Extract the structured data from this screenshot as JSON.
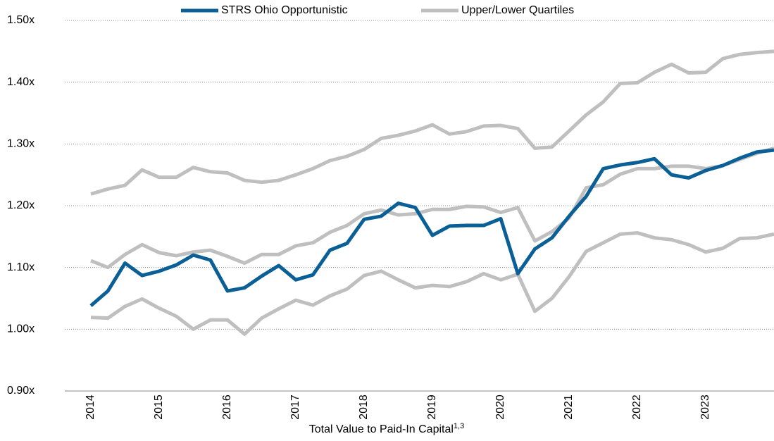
{
  "chart_data": {
    "type": "line",
    "x_label": "Total Value to Paid-In Capital",
    "x_label_note": "1,3",
    "categories": [
      "2014",
      null,
      null,
      null,
      "2015",
      null,
      null,
      null,
      "2016",
      null,
      null,
      null,
      "2017",
      null,
      null,
      null,
      "2018",
      null,
      null,
      null,
      "2019",
      null,
      null,
      null,
      "2020",
      null,
      null,
      null,
      "2021",
      null,
      null,
      null,
      "2022",
      null,
      null,
      null,
      "2023",
      null,
      null,
      null,
      null
    ],
    "series": [
      {
        "name": "Upper/Lower Quartiles",
        "color": "#bfbfbf",
        "values": [
          1.219,
          1.227,
          1.233,
          1.258,
          1.246,
          1.246,
          1.262,
          1.255,
          1.253,
          1.241,
          1.238,
          1.241,
          1.25,
          1.26,
          1.273,
          1.28,
          1.291,
          1.309,
          1.314,
          1.321,
          1.331,
          1.316,
          1.32,
          1.329,
          1.33,
          1.325,
          1.293,
          1.295,
          1.321,
          1.347,
          1.368,
          1.398,
          1.399,
          1.416,
          1.429,
          1.415,
          1.416,
          1.438,
          1.445,
          1.448,
          1.45
        ]
      },
      {
        "color": "#bfbfbf",
        "values": [
          1.111,
          1.1,
          1.121,
          1.137,
          1.124,
          1.119,
          1.125,
          1.128,
          1.118,
          1.107,
          1.121,
          1.121,
          1.135,
          1.14,
          1.157,
          1.168,
          1.187,
          1.193,
          1.185,
          1.187,
          1.194,
          1.194,
          1.199,
          1.198,
          1.189,
          1.197,
          1.143,
          1.158,
          1.18,
          1.229,
          1.234,
          1.251,
          1.26,
          1.26,
          1.264,
          1.264,
          1.26,
          1.265,
          1.275,
          1.285,
          1.293
        ]
      },
      {
        "color": "#bfbfbf",
        "values": [
          1.019,
          1.018,
          1.037,
          1.049,
          1.034,
          1.021,
          1.0,
          1.015,
          1.015,
          0.992,
          1.018,
          1.033,
          1.047,
          1.039,
          1.054,
          1.065,
          1.087,
          1.094,
          1.08,
          1.067,
          1.071,
          1.069,
          1.077,
          1.09,
          1.08,
          1.089,
          1.029,
          1.05,
          1.085,
          1.126,
          1.14,
          1.154,
          1.156,
          1.148,
          1.145,
          1.137,
          1.125,
          1.131,
          1.147,
          1.148,
          1.154
        ]
      },
      {
        "name": "STRS Ohio Opportunistic",
        "color": "#0a6096",
        "values": [
          1.038,
          1.062,
          1.107,
          1.087,
          1.094,
          1.104,
          1.12,
          1.112,
          1.062,
          1.067,
          1.086,
          1.103,
          1.08,
          1.088,
          1.128,
          1.139,
          1.178,
          1.183,
          1.204,
          1.197,
          1.152,
          1.167,
          1.168,
          1.168,
          1.179,
          1.09,
          1.13,
          1.148,
          1.183,
          1.215,
          1.26,
          1.266,
          1.27,
          1.276,
          1.25,
          1.245,
          1.257,
          1.265,
          1.277,
          1.287,
          1.29
        ]
      }
    ],
    "legend_order": [
      3,
      0
    ],
    "ylim": [
      0.9,
      1.5
    ],
    "yticks": [
      {
        "value": 0.9,
        "label": "0.90x"
      },
      {
        "value": 1.0,
        "label": "1.00x"
      },
      {
        "value": 1.1,
        "label": "1.10x"
      },
      {
        "value": 1.2,
        "label": "1.20x"
      },
      {
        "value": 1.3,
        "label": "1.30x"
      },
      {
        "value": 1.4,
        "label": "1.40x"
      },
      {
        "value": 1.5,
        "label": "1.50x"
      }
    ],
    "grid": true
  }
}
